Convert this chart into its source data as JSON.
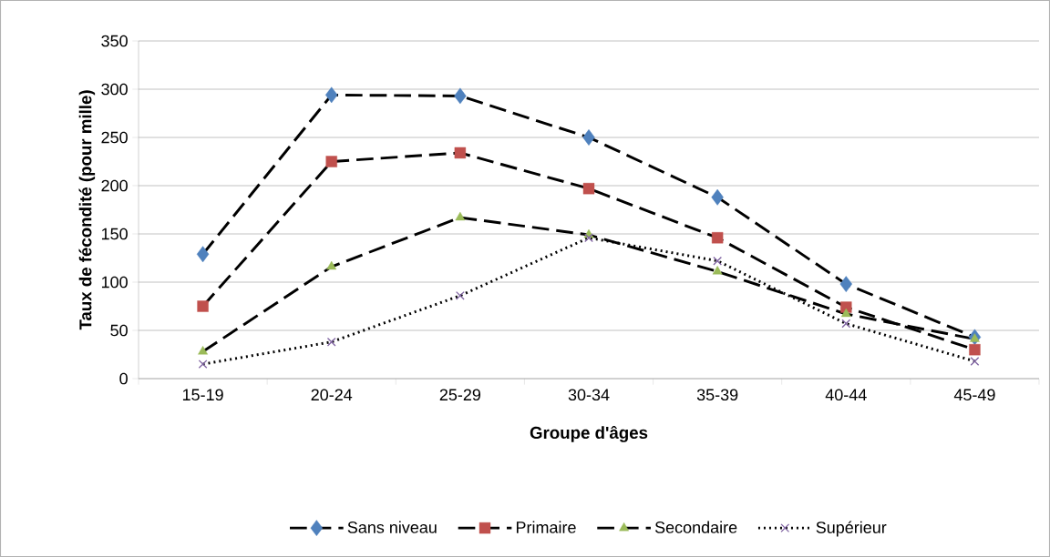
{
  "chart_data": {
    "type": "line",
    "xlabel": "Groupe d'âges",
    "ylabel": "Taux de fécondité (pour mille)",
    "categories": [
      "15-19",
      "20-24",
      "25-29",
      "30-34",
      "35-39",
      "40-44",
      "45-49"
    ],
    "series": [
      {
        "name": "Sans niveau",
        "color": "#4f81bd",
        "marker": "diamond",
        "line_style": "dashed",
        "values": [
          129,
          294,
          293,
          250,
          188,
          98,
          43
        ]
      },
      {
        "name": "Primaire",
        "color": "#c0504d",
        "marker": "square",
        "line_style": "dashed",
        "values": [
          75,
          225,
          234,
          197,
          146,
          74,
          30
        ]
      },
      {
        "name": "Secondaire",
        "color": "#9bbb59",
        "marker": "triangle",
        "line_style": "dashed",
        "values": [
          28,
          116,
          167,
          149,
          111,
          67,
          41
        ]
      },
      {
        "name": "Supérieur",
        "color": "#8064a2",
        "marker": "cross",
        "line_style": "dotted",
        "values": [
          15,
          38,
          86,
          146,
          122,
          57,
          18
        ]
      }
    ],
    "ylim": [
      0,
      350
    ],
    "yticks": [
      0,
      50,
      100,
      150,
      200,
      250,
      300,
      350
    ],
    "grid": "y",
    "legend": "bottom"
  }
}
